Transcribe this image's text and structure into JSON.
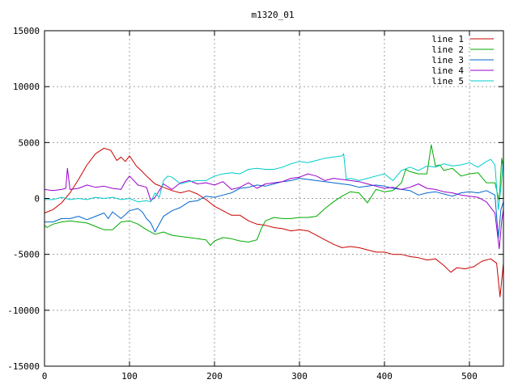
{
  "chart_data": {
    "type": "line",
    "title": "m1320_01",
    "xlabel": "",
    "ylabel": "",
    "xlim": [
      0,
      540
    ],
    "ylim": [
      -15000,
      15000
    ],
    "xticks": [
      0,
      100,
      200,
      300,
      400,
      500
    ],
    "yticks": [
      -15000,
      -10000,
      -5000,
      0,
      5000,
      10000,
      15000
    ],
    "grid": true,
    "legend_position": "top-right",
    "series": [
      {
        "name": "line 1",
        "color": "#cc0000",
        "points": [
          [
            0,
            -1300
          ],
          [
            10,
            -1000
          ],
          [
            20,
            -400
          ],
          [
            30,
            500
          ],
          [
            40,
            1700
          ],
          [
            50,
            3000
          ],
          [
            60,
            4000
          ],
          [
            70,
            4500
          ],
          [
            78,
            4300
          ],
          [
            85,
            3400
          ],
          [
            90,
            3700
          ],
          [
            95,
            3300
          ],
          [
            100,
            3800
          ],
          [
            108,
            2900
          ],
          [
            115,
            2400
          ],
          [
            120,
            2000
          ],
          [
            130,
            1300
          ],
          [
            140,
            1000
          ],
          [
            150,
            700
          ],
          [
            160,
            500
          ],
          [
            170,
            700
          ],
          [
            180,
            400
          ],
          [
            190,
            -100
          ],
          [
            200,
            -700
          ],
          [
            210,
            -1100
          ],
          [
            220,
            -1500
          ],
          [
            230,
            -1500
          ],
          [
            240,
            -2000
          ],
          [
            250,
            -2300
          ],
          [
            260,
            -2400
          ],
          [
            270,
            -2600
          ],
          [
            280,
            -2700
          ],
          [
            290,
            -2900
          ],
          [
            300,
            -2800
          ],
          [
            310,
            -2900
          ],
          [
            320,
            -3300
          ],
          [
            330,
            -3700
          ],
          [
            340,
            -4100
          ],
          [
            350,
            -4400
          ],
          [
            360,
            -4300
          ],
          [
            370,
            -4400
          ],
          [
            380,
            -4600
          ],
          [
            390,
            -4800
          ],
          [
            400,
            -4800
          ],
          [
            410,
            -5000
          ],
          [
            420,
            -5000
          ],
          [
            430,
            -5200
          ],
          [
            440,
            -5300
          ],
          [
            450,
            -5500
          ],
          [
            460,
            -5400
          ],
          [
            470,
            -6000
          ],
          [
            478,
            -6600
          ],
          [
            485,
            -6200
          ],
          [
            495,
            -6300
          ],
          [
            505,
            -6100
          ],
          [
            515,
            -5600
          ],
          [
            525,
            -5400
          ],
          [
            532,
            -5800
          ],
          [
            536,
            -8800
          ],
          [
            540,
            -5800
          ]
        ]
      },
      {
        "name": "line 2",
        "color": "#00aa00",
        "points": [
          [
            0,
            -2400
          ],
          [
            3,
            -2600
          ],
          [
            10,
            -2300
          ],
          [
            20,
            -2100
          ],
          [
            30,
            -2000
          ],
          [
            40,
            -2100
          ],
          [
            50,
            -2200
          ],
          [
            60,
            -2500
          ],
          [
            70,
            -2800
          ],
          [
            80,
            -2800
          ],
          [
            90,
            -2100
          ],
          [
            100,
            -2000
          ],
          [
            110,
            -2300
          ],
          [
            120,
            -2800
          ],
          [
            130,
            -3200
          ],
          [
            140,
            -3000
          ],
          [
            150,
            -3300
          ],
          [
            160,
            -3400
          ],
          [
            170,
            -3500
          ],
          [
            180,
            -3600
          ],
          [
            190,
            -3700
          ],
          [
            195,
            -4200
          ],
          [
            200,
            -3800
          ],
          [
            210,
            -3500
          ],
          [
            220,
            -3600
          ],
          [
            230,
            -3800
          ],
          [
            240,
            -3900
          ],
          [
            250,
            -3700
          ],
          [
            255,
            -2700
          ],
          [
            260,
            -2000
          ],
          [
            270,
            -1700
          ],
          [
            280,
            -1800
          ],
          [
            290,
            -1800
          ],
          [
            300,
            -1700
          ],
          [
            310,
            -1700
          ],
          [
            320,
            -1600
          ],
          [
            330,
            -900
          ],
          [
            340,
            -300
          ],
          [
            350,
            200
          ],
          [
            360,
            600
          ],
          [
            370,
            500
          ],
          [
            380,
            -400
          ],
          [
            385,
            200
          ],
          [
            390,
            800
          ],
          [
            400,
            600
          ],
          [
            410,
            700
          ],
          [
            420,
            1400
          ],
          [
            425,
            2600
          ],
          [
            430,
            2400
          ],
          [
            440,
            2200
          ],
          [
            450,
            2200
          ],
          [
            455,
            4800
          ],
          [
            460,
            2900
          ],
          [
            465,
            3000
          ],
          [
            470,
            2500
          ],
          [
            480,
            2700
          ],
          [
            490,
            2000
          ],
          [
            500,
            2200
          ],
          [
            510,
            2300
          ],
          [
            520,
            1400
          ],
          [
            530,
            1400
          ],
          [
            535,
            -200
          ],
          [
            538,
            3600
          ],
          [
            540,
            2600
          ]
        ]
      },
      {
        "name": "line 3",
        "color": "#0066cc",
        "points": [
          [
            0,
            -2100
          ],
          [
            10,
            -2100
          ],
          [
            20,
            -1800
          ],
          [
            30,
            -1800
          ],
          [
            40,
            -1600
          ],
          [
            50,
            -1900
          ],
          [
            60,
            -1600
          ],
          [
            70,
            -1300
          ],
          [
            75,
            -1800
          ],
          [
            80,
            -1200
          ],
          [
            90,
            -1800
          ],
          [
            100,
            -1100
          ],
          [
            110,
            -900
          ],
          [
            115,
            -1200
          ],
          [
            120,
            -1800
          ],
          [
            125,
            -2200
          ],
          [
            130,
            -3000
          ],
          [
            140,
            -1600
          ],
          [
            150,
            -1100
          ],
          [
            160,
            -800
          ],
          [
            170,
            -300
          ],
          [
            180,
            -200
          ],
          [
            190,
            200
          ],
          [
            200,
            100
          ],
          [
            210,
            300
          ],
          [
            220,
            500
          ],
          [
            230,
            900
          ],
          [
            240,
            1000
          ],
          [
            250,
            1200
          ],
          [
            260,
            1100
          ],
          [
            270,
            1300
          ],
          [
            280,
            1500
          ],
          [
            290,
            1600
          ],
          [
            300,
            1800
          ],
          [
            310,
            1700
          ],
          [
            320,
            1600
          ],
          [
            330,
            1500
          ],
          [
            340,
            1400
          ],
          [
            350,
            1300
          ],
          [
            360,
            1200
          ],
          [
            370,
            1000
          ],
          [
            380,
            1100
          ],
          [
            390,
            1200
          ],
          [
            400,
            1100
          ],
          [
            410,
            900
          ],
          [
            420,
            800
          ],
          [
            430,
            700
          ],
          [
            440,
            300
          ],
          [
            450,
            500
          ],
          [
            460,
            600
          ],
          [
            470,
            400
          ],
          [
            480,
            200
          ],
          [
            490,
            500
          ],
          [
            500,
            600
          ],
          [
            510,
            500
          ],
          [
            520,
            700
          ],
          [
            530,
            300
          ],
          [
            534,
            -3500
          ],
          [
            537,
            -1000
          ],
          [
            540,
            -300
          ]
        ]
      },
      {
        "name": "line 4",
        "color": "#9900cc",
        "points": [
          [
            0,
            800
          ],
          [
            10,
            700
          ],
          [
            20,
            800
          ],
          [
            25,
            900
          ],
          [
            27,
            2700
          ],
          [
            30,
            800
          ],
          [
            40,
            900
          ],
          [
            50,
            1200
          ],
          [
            60,
            1000
          ],
          [
            70,
            1100
          ],
          [
            80,
            900
          ],
          [
            90,
            800
          ],
          [
            95,
            1500
          ],
          [
            100,
            2000
          ],
          [
            110,
            1200
          ],
          [
            120,
            1000
          ],
          [
            125,
            -200
          ],
          [
            130,
            100
          ],
          [
            140,
            1300
          ],
          [
            150,
            800
          ],
          [
            160,
            1400
          ],
          [
            170,
            1600
          ],
          [
            180,
            1300
          ],
          [
            190,
            1400
          ],
          [
            200,
            1200
          ],
          [
            210,
            1500
          ],
          [
            220,
            800
          ],
          [
            230,
            1000
          ],
          [
            240,
            1400
          ],
          [
            250,
            900
          ],
          [
            260,
            1300
          ],
          [
            270,
            1400
          ],
          [
            280,
            1500
          ],
          [
            290,
            1800
          ],
          [
            300,
            1900
          ],
          [
            310,
            2200
          ],
          [
            320,
            2000
          ],
          [
            330,
            1600
          ],
          [
            340,
            1800
          ],
          [
            350,
            1700
          ],
          [
            360,
            1600
          ],
          [
            370,
            1500
          ],
          [
            380,
            1300
          ],
          [
            390,
            1100
          ],
          [
            400,
            900
          ],
          [
            410,
            1000
          ],
          [
            420,
            800
          ],
          [
            430,
            1000
          ],
          [
            440,
            1300
          ],
          [
            450,
            900
          ],
          [
            460,
            800
          ],
          [
            470,
            600
          ],
          [
            480,
            500
          ],
          [
            490,
            300
          ],
          [
            500,
            200
          ],
          [
            510,
            100
          ],
          [
            520,
            -300
          ],
          [
            530,
            -1300
          ],
          [
            535,
            -4500
          ],
          [
            538,
            -2000
          ],
          [
            540,
            -1000
          ]
        ]
      },
      {
        "name": "line 5",
        "color": "#00cccc",
        "points": [
          [
            0,
            -100
          ],
          [
            10,
            -100
          ],
          [
            20,
            100
          ],
          [
            30,
            -100
          ],
          [
            40,
            0
          ],
          [
            50,
            -100
          ],
          [
            60,
            100
          ],
          [
            70,
            0
          ],
          [
            80,
            100
          ],
          [
            90,
            -100
          ],
          [
            100,
            0
          ],
          [
            110,
            -300
          ],
          [
            120,
            -200
          ],
          [
            125,
            -300
          ],
          [
            130,
            500
          ],
          [
            135,
            100
          ],
          [
            140,
            1600
          ],
          [
            145,
            2000
          ],
          [
            150,
            1900
          ],
          [
            160,
            1300
          ],
          [
            170,
            1500
          ],
          [
            180,
            1600
          ],
          [
            190,
            1600
          ],
          [
            200,
            2000
          ],
          [
            210,
            2200
          ],
          [
            220,
            2300
          ],
          [
            230,
            2200
          ],
          [
            240,
            2600
          ],
          [
            250,
            2700
          ],
          [
            260,
            2600
          ],
          [
            270,
            2600
          ],
          [
            280,
            2800
          ],
          [
            290,
            3100
          ],
          [
            300,
            3300
          ],
          [
            310,
            3200
          ],
          [
            320,
            3400
          ],
          [
            330,
            3600
          ],
          [
            340,
            3700
          ],
          [
            350,
            3800
          ],
          [
            352,
            4000
          ],
          [
            355,
            1700
          ],
          [
            360,
            1800
          ],
          [
            370,
            1600
          ],
          [
            380,
            1800
          ],
          [
            390,
            2000
          ],
          [
            400,
            2200
          ],
          [
            410,
            1600
          ],
          [
            420,
            2500
          ],
          [
            430,
            2800
          ],
          [
            440,
            2500
          ],
          [
            450,
            2900
          ],
          [
            460,
            2800
          ],
          [
            470,
            3100
          ],
          [
            480,
            2900
          ],
          [
            490,
            3000
          ],
          [
            500,
            3200
          ],
          [
            510,
            2800
          ],
          [
            520,
            3300
          ],
          [
            525,
            3500
          ],
          [
            530,
            3000
          ],
          [
            534,
            -1000
          ],
          [
            537,
            1000
          ],
          [
            540,
            3500
          ]
        ]
      }
    ]
  }
}
